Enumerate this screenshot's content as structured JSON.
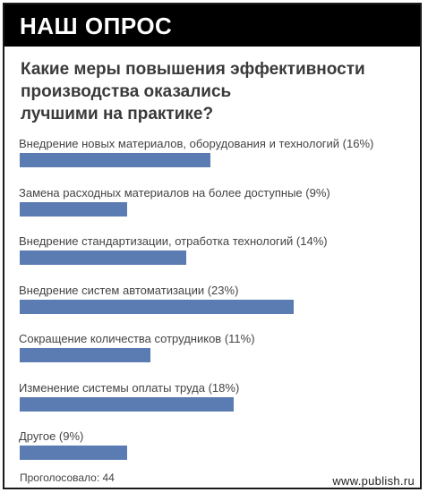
{
  "header": {
    "title": "НАШ ОПРОС"
  },
  "question": {
    "lines": [
      "Какие меры повышения эффективности",
      "производства оказались",
      "лучшими на практике?"
    ]
  },
  "colors": {
    "bar": "#5b7bb3",
    "header_bg": "#000000"
  },
  "chart_data": {
    "type": "bar",
    "orientation": "horizontal",
    "categories": [
      "Внедрение новых материалов, оборудования и технологий (16%)",
      "Замена расходных материалов на более доступные (9%)",
      "Внедрение стандартизации, отработка технологий (14%)",
      "Внедрение систем автоматизации (23%)",
      "Сокращение количества сотрудников (11%)",
      "Изменение системы оплаты труда (18%)",
      "Другое (9%)"
    ],
    "values": [
      16,
      9,
      14,
      23,
      11,
      18,
      9
    ],
    "unit": "%",
    "title": "Какие меры повышения эффективности производства оказались лучшими на практике?"
  },
  "footer": {
    "votes": "Проголосовало: 44",
    "site": "www.publish.ru"
  }
}
